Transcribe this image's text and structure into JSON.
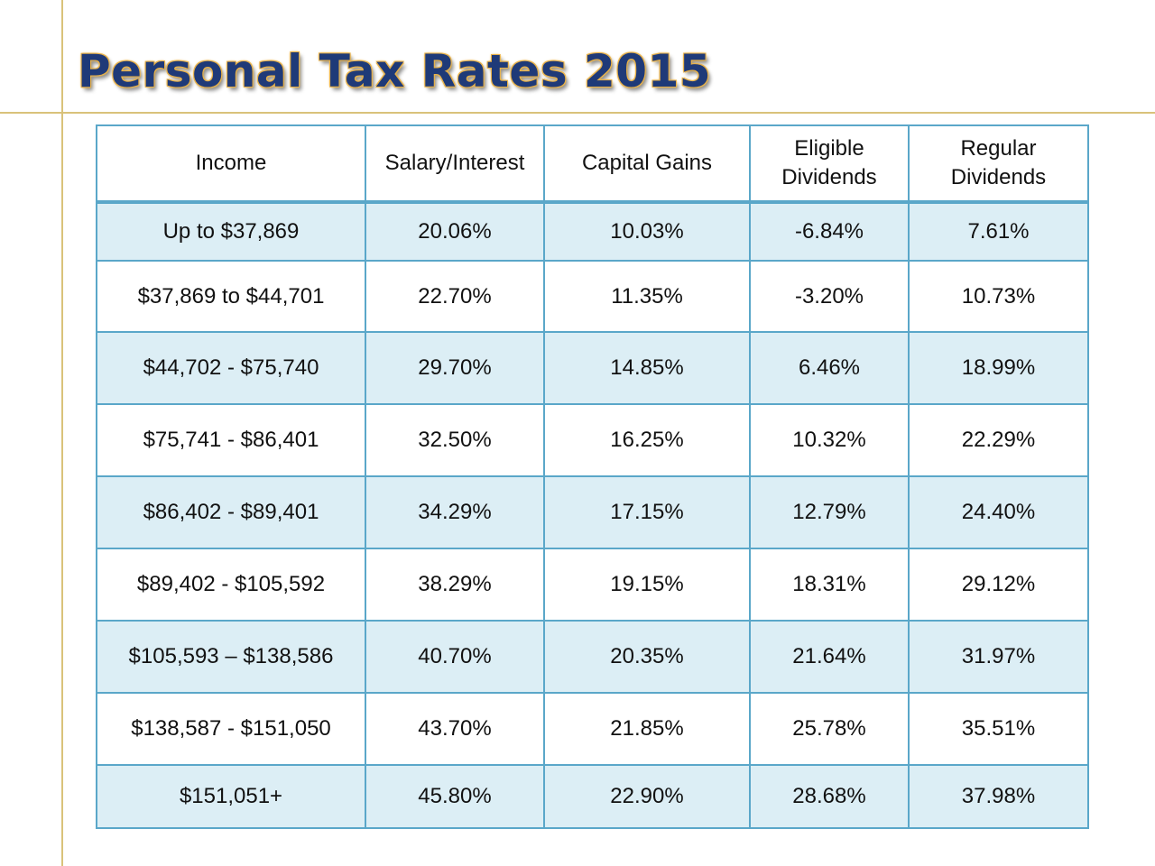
{
  "title": "Personal Tax Rates 2015",
  "table": {
    "headers": {
      "income": "Income",
      "salary": "Salary/Interest",
      "capital": "Capital Gains",
      "eligible_line1": "Eligible",
      "eligible_line2": "Dividends",
      "regular_line1": "Regular",
      "regular_line2": "Dividends"
    },
    "rows": [
      [
        "Up to $37,869",
        "20.06%",
        "10.03%",
        "-6.84%",
        "7.61%"
      ],
      [
        "$37,869 to $44,701",
        "22.70%",
        "11.35%",
        "-3.20%",
        "10.73%"
      ],
      [
        "$44,702 - $75,740",
        "29.70%",
        "14.85%",
        "6.46%",
        "18.99%"
      ],
      [
        "$75,741 - $86,401",
        "32.50%",
        "16.25%",
        "10.32%",
        "22.29%"
      ],
      [
        "$86,402 - $89,401",
        "34.29%",
        "17.15%",
        "12.79%",
        "24.40%"
      ],
      [
        "$89,402 - $105,592",
        "38.29%",
        "19.15%",
        "18.31%",
        "29.12%"
      ],
      [
        "$105,593 – $138,586",
        "40.70%",
        "20.35%",
        "21.64%",
        "31.97%"
      ],
      [
        "$138,587 - $151,050",
        "43.70%",
        "21.85%",
        "25.78%",
        "35.51%"
      ],
      [
        "$151,051+",
        "45.80%",
        "22.90%",
        "28.68%",
        "37.98%"
      ]
    ]
  },
  "colors": {
    "title_text": "#1f3a78",
    "title_glow": "#e8b24a",
    "table_border": "#5aa7c9",
    "row_shade": "#dceef5",
    "guide_line": "#d9c27a"
  }
}
